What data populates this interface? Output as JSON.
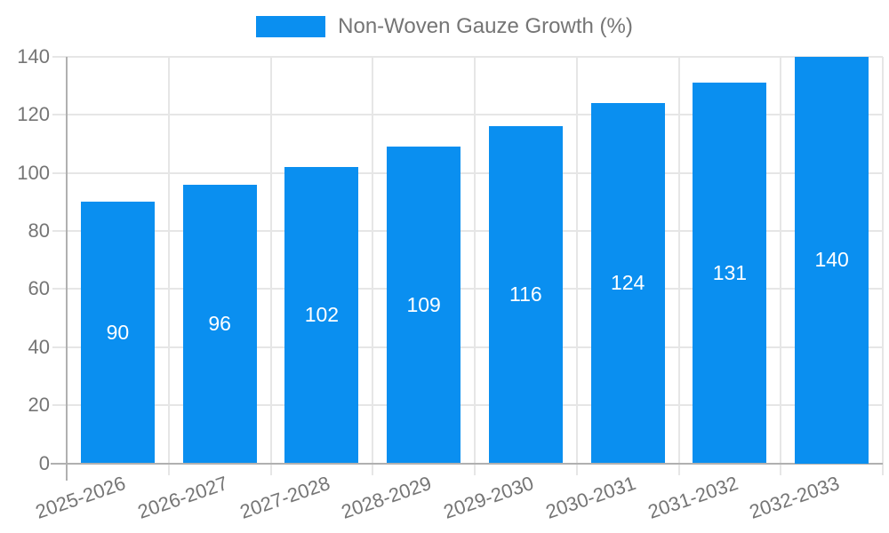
{
  "legend": {
    "label": "Non-Woven Gauze Growth (%)"
  },
  "chart_data": {
    "type": "bar",
    "title": "",
    "legend_entries": [
      "Non-Woven Gauze Growth (%)"
    ],
    "legend_position": "top-center",
    "categories": [
      "2025-2026",
      "2026-2027",
      "2027-2028",
      "2028-2029",
      "2029-2030",
      "2030-2031",
      "2031-2032",
      "2032-2033"
    ],
    "series": [
      {
        "name": "Non-Woven Gauze Growth (%)",
        "values": [
          90,
          96,
          102,
          109,
          116,
          124,
          131,
          140
        ]
      }
    ],
    "value_labels_shown": true,
    "xlabel": "",
    "ylabel": "",
    "ylim": [
      0,
      140
    ],
    "ytick_step": 20,
    "yticks": [
      0,
      20,
      40,
      60,
      80,
      100,
      120,
      140
    ],
    "grid": true,
    "colors": {
      "bar": "#0a8ff0",
      "value_label": "#ffffff",
      "grid_line": "#e6e6e6",
      "axis_line": "#b0b0b0",
      "tick_text": "#757575"
    }
  }
}
